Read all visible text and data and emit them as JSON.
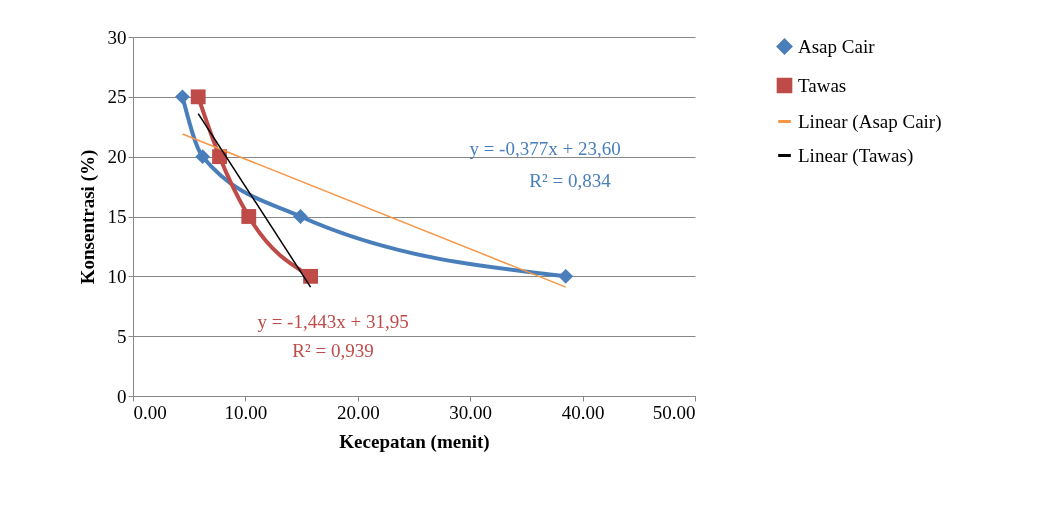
{
  "chart_data": {
    "type": "line",
    "xlabel": "Kecepatan (menit)",
    "ylabel": "Konsentrasi (%)",
    "xlim": [
      0,
      50
    ],
    "xticks": [
      {
        "value": 0,
        "label": "0.00"
      },
      {
        "value": 10,
        "label": "10.00"
      },
      {
        "value": 20,
        "label": "20.00"
      },
      {
        "value": 30,
        "label": "30.00"
      },
      {
        "value": 40,
        "label": "40.00"
      },
      {
        "value": 50,
        "label": "50.00"
      }
    ],
    "ylim": [
      0,
      30
    ],
    "yticks": [
      0,
      5,
      10,
      15,
      20,
      25,
      30
    ],
    "grid": "y",
    "legend": "right",
    "series": [
      {
        "name": "Asap Cair",
        "color": "#4a7ebb",
        "marker": "diamond",
        "x": [
          4.4,
          6.2,
          14.9,
          38.5
        ],
        "values": [
          25,
          20,
          15,
          10
        ]
      },
      {
        "name": "Tawas",
        "color": "#be4b48",
        "marker": "square",
        "x": [
          5.8,
          7.7,
          10.3,
          15.8
        ],
        "values": [
          25,
          20,
          15,
          10
        ]
      },
      {
        "name": "Linear (Asap Cair)",
        "color": "#f79646",
        "marker": "none",
        "x": [
          4.4,
          38.5
        ],
        "values": [
          21.9,
          9.1
        ]
      },
      {
        "name": "Linear (Tawas)",
        "color": "#000000",
        "marker": "none",
        "x": [
          5.8,
          15.8
        ],
        "values": [
          23.6,
          9.1
        ]
      }
    ],
    "annotations": [
      "y = -0,377x + 23,60",
      "R² = 0,834",
      "y = -1,443x + 31,95",
      "R² = 0,939"
    ]
  }
}
